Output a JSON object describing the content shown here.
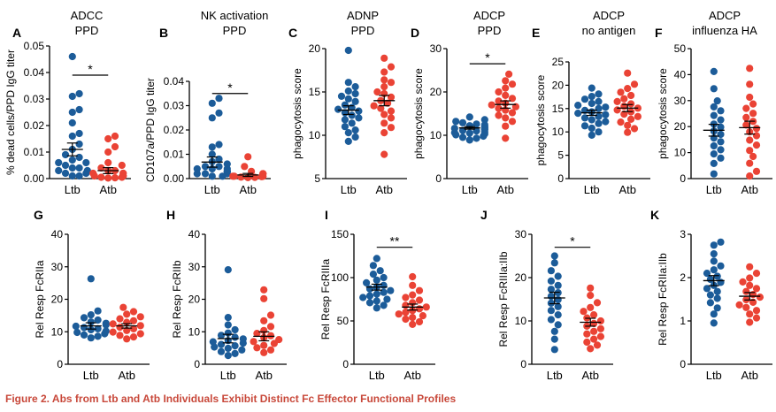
{
  "figure": {
    "caption": "Figure 2.  Abs from Ltb and Atb Individuals Exhibit Distinct Fc Effector Functional Profiles"
  },
  "colors": {
    "ltb": "#1c5c99",
    "atb": "#ea4335",
    "axis": "#000000",
    "caption": "#c8483a"
  },
  "chart_data": [
    {
      "panel": "A",
      "type": "scatter",
      "title": [
        "ADCC",
        "PPD"
      ],
      "ylabel": "% dead cells/PPD IgG titer",
      "ylim": [
        0,
        0.05
      ],
      "yticks": [
        0,
        0.01,
        0.02,
        0.03,
        0.04,
        0.05
      ],
      "ytick_labels": [
        "0.00",
        "0.01",
        "0.02",
        "0.03",
        "0.04",
        "0.05"
      ],
      "categories": [
        "Ltb",
        "Atb"
      ],
      "significance": "*",
      "series": [
        {
          "name": "Ltb",
          "mean": 0.011,
          "values": [
            0.046,
            0.031,
            0.032,
            0.026,
            0.025,
            0.021,
            0.017,
            0.016,
            0.013,
            0.011,
            0.009,
            0.008,
            0.007,
            0.006,
            0.006,
            0.005,
            0.004,
            0.004,
            0.003,
            0.003,
            0.002,
            0.002,
            0.001,
            0.001
          ]
        },
        {
          "name": "Atb",
          "mean": 0.003,
          "values": [
            0.016,
            0.015,
            0.012,
            0.01,
            0.006,
            0.005,
            0.004,
            0.003,
            0.003,
            0.002,
            0.002,
            0.002,
            0.001,
            0.001,
            0.001,
            0.001,
            0.0005,
            0.0005,
            0.0003,
            0.0002
          ]
        }
      ]
    },
    {
      "panel": "B",
      "type": "scatter",
      "title": [
        "NK activation",
        "PPD"
      ],
      "ylabel": "CD107a/PPD IgG titer",
      "ylim": [
        0,
        0.04
      ],
      "yticks": [
        0,
        0.01,
        0.02,
        0.03,
        0.04
      ],
      "ytick_labels": [
        "0.00",
        "0.01",
        "0.02",
        "0.03",
        "0.04"
      ],
      "categories": [
        "Ltb",
        "Atb"
      ],
      "significance": "*",
      "series": [
        {
          "name": "Ltb",
          "mean": 0.0068,
          "values": [
            0.033,
            0.031,
            0.027,
            0.025,
            0.014,
            0.013,
            0.01,
            0.008,
            0.007,
            0.006,
            0.005,
            0.005,
            0.004,
            0.004,
            0.004,
            0.003,
            0.003,
            0.003,
            0.002,
            0.002,
            0.002,
            0.001,
            0.001
          ]
        },
        {
          "name": "Atb",
          "mean": 0.0015,
          "values": [
            0.009,
            0.005,
            0.003,
            0.002,
            0.002,
            0.002,
            0.001,
            0.001,
            0.001,
            0.001,
            0.0008,
            0.0006,
            0.0005,
            0.0004
          ]
        }
      ]
    },
    {
      "panel": "C",
      "type": "scatter",
      "title": [
        "ADNP",
        "PPD"
      ],
      "ylabel": "phagocytosis score",
      "ylim": [
        5,
        20
      ],
      "yticks": [
        5,
        10,
        15,
        20
      ],
      "ytick_labels": [
        "5",
        "10",
        "15",
        "20"
      ],
      "categories": [
        "Ltb",
        "Atb"
      ],
      "significance": "",
      "series": [
        {
          "name": "Ltb",
          "mean": 12.9,
          "values": [
            19.8,
            16.1,
            15.6,
            15.1,
            14.8,
            14.5,
            14.2,
            13.9,
            13.5,
            13.2,
            13.0,
            12.8,
            12.6,
            12.3,
            12.0,
            11.8,
            11.4,
            11.0,
            10.6,
            10.3,
            9.8,
            9.3
          ]
        },
        {
          "name": "Atb",
          "mean": 14.0,
          "values": [
            18.9,
            17.9,
            17.3,
            16.4,
            16.1,
            15.6,
            15.0,
            14.8,
            14.4,
            14.0,
            13.7,
            13.4,
            13.1,
            12.8,
            12.4,
            12.0,
            11.4,
            10.9,
            10.3,
            7.8
          ]
        }
      ]
    },
    {
      "panel": "D",
      "type": "scatter",
      "title": [
        "ADCP",
        "PPD"
      ],
      "ylabel": "phagocytosis score",
      "ylim": [
        0,
        30
      ],
      "yticks": [
        0,
        10,
        20,
        30
      ],
      "ytick_labels": [
        "0",
        "10",
        "20",
        "30"
      ],
      "categories": [
        "Ltb",
        "Atb"
      ],
      "significance": "*",
      "series": [
        {
          "name": "Ltb",
          "mean": 11.7,
          "values": [
            14.2,
            13.6,
            13.2,
            12.9,
            12.6,
            12.4,
            12.2,
            12.0,
            11.8,
            11.6,
            11.5,
            11.3,
            11.1,
            11.0,
            10.8,
            10.6,
            10.5,
            10.3,
            10.1,
            9.8,
            9.5,
            9.3,
            8.9
          ]
        },
        {
          "name": "Atb",
          "mean": 17.1,
          "values": [
            24.1,
            22.6,
            21.8,
            20.9,
            20.0,
            19.2,
            18.5,
            17.9,
            17.4,
            17.0,
            16.6,
            16.2,
            15.8,
            15.2,
            14.6,
            14.0,
            13.2,
            12.1,
            9.3
          ]
        }
      ]
    },
    {
      "panel": "E",
      "type": "scatter",
      "title": [
        "ADCP",
        "no antigen"
      ],
      "ylabel": "phagocytosis score",
      "ylim": [
        0,
        25
      ],
      "yticks": [
        0,
        5,
        10,
        15,
        20,
        25
      ],
      "ytick_labels": [
        "0",
        "5",
        "10",
        "15",
        "20",
        "25"
      ],
      "categories": [
        "Ltb",
        "Atb"
      ],
      "significance": "",
      "series": [
        {
          "name": "Ltb",
          "mean": 14.1,
          "values": [
            19.4,
            18.1,
            17.6,
            17.0,
            16.5,
            16.1,
            15.7,
            15.3,
            15.0,
            14.6,
            14.3,
            14.0,
            13.7,
            13.3,
            13.0,
            12.6,
            12.2,
            11.8,
            11.3,
            10.8,
            10.0,
            9.3
          ]
        },
        {
          "name": "Atb",
          "mean": 15.1,
          "values": [
            22.6,
            20.2,
            19.3,
            18.5,
            17.8,
            17.1,
            16.5,
            16.0,
            15.5,
            15.1,
            14.7,
            14.3,
            13.8,
            13.3,
            12.7,
            12.1,
            11.4,
            10.7,
            9.9
          ]
        }
      ]
    },
    {
      "panel": "F",
      "type": "scatter",
      "title": [
        "ADCP",
        "influenza HA"
      ],
      "ylabel": "phagocytosis score",
      "ylim": [
        0,
        50
      ],
      "yticks": [
        0,
        10,
        20,
        30,
        40,
        50
      ],
      "ytick_labels": [
        "0",
        "10",
        "20",
        "30",
        "40",
        "50"
      ],
      "categories": [
        "Ltb",
        "Atb"
      ],
      "significance": "",
      "series": [
        {
          "name": "Ltb",
          "mean": 18.6,
          "values": [
            41.2,
            34.6,
            29.9,
            27.6,
            26.1,
            24.3,
            22.6,
            21.0,
            19.8,
            18.3,
            17.0,
            15.6,
            14.2,
            12.6,
            11.1,
            9.5,
            7.9,
            5.8,
            1.8
          ]
        },
        {
          "name": "Atb",
          "mean": 19.6,
          "values": [
            42.4,
            36.3,
            31.3,
            28.7,
            27.0,
            25.1,
            23.5,
            22.0,
            20.6,
            19.3,
            18.0,
            16.5,
            14.8,
            12.9,
            10.8,
            8.5,
            5.9,
            2.8,
            1.0
          ]
        }
      ]
    },
    {
      "panel": "G",
      "type": "scatter",
      "title": [],
      "ylabel": "Rel Resp FcRIIa",
      "ylim": [
        0,
        40
      ],
      "yticks": [
        0,
        10,
        20,
        30,
        40
      ],
      "ytick_labels": [
        "0",
        "10",
        "20",
        "30",
        "40"
      ],
      "categories": [
        "Ltb",
        "Atb"
      ],
      "significance": "",
      "series": [
        {
          "name": "Ltb",
          "mean": 11.8,
          "values": [
            26.3,
            16.4,
            15.2,
            14.3,
            13.6,
            13.0,
            12.6,
            12.1,
            11.7,
            11.3,
            10.9,
            10.6,
            10.2,
            9.8,
            9.4,
            9.0,
            8.6,
            8.1
          ]
        },
        {
          "name": "Atb",
          "mean": 11.8,
          "values": [
            17.5,
            16.2,
            15.4,
            14.6,
            14.0,
            13.4,
            12.9,
            12.4,
            11.9,
            11.4,
            10.9,
            10.4,
            9.9,
            9.4,
            8.9,
            8.4,
            7.8
          ]
        }
      ]
    },
    {
      "panel": "H",
      "type": "scatter",
      "title": [],
      "ylabel": "Rel Resp FcRIIb",
      "ylim": [
        0,
        40
      ],
      "yticks": [
        0,
        10,
        20,
        30,
        40
      ],
      "ytick_labels": [
        "0",
        "10",
        "20",
        "30",
        "40"
      ],
      "categories": [
        "Ltb",
        "Atb"
      ],
      "significance": "",
      "series": [
        {
          "name": "Ltb",
          "mean": 7.9,
          "values": [
            29.1,
            14.4,
            12.1,
            10.6,
            9.6,
            8.9,
            8.3,
            7.8,
            7.3,
            6.9,
            6.5,
            6.1,
            5.7,
            5.3,
            4.9,
            4.4,
            3.9,
            3.3,
            2.7
          ]
        },
        {
          "name": "Atb",
          "mean": 8.6,
          "values": [
            22.9,
            20.2,
            15.1,
            13.4,
            11.6,
            10.4,
            9.5,
            8.8,
            8.2,
            7.6,
            7.0,
            6.4,
            5.8,
            5.1,
            4.4,
            3.6
          ]
        }
      ]
    },
    {
      "panel": "I",
      "type": "scatter",
      "title": [],
      "ylabel": "Rel Resp FcRIIIa",
      "ylim": [
        0,
        150
      ],
      "yticks": [
        0,
        50,
        100,
        150
      ],
      "ytick_labels": [
        "0",
        "50",
        "100",
        "150"
      ],
      "categories": [
        "Ltb",
        "Atb"
      ],
      "significance": "**",
      "series": [
        {
          "name": "Ltb",
          "mean": 89,
          "values": [
            122,
            114,
            108,
            104,
            100,
            97,
            94,
            91,
            89,
            87,
            85,
            83,
            81,
            79,
            77,
            75,
            73,
            71,
            68,
            65
          ]
        },
        {
          "name": "Atb",
          "mean": 66,
          "values": [
            101,
            91,
            85,
            80,
            77,
            74,
            71,
            68,
            66,
            64,
            62,
            60,
            58,
            56,
            54,
            52,
            49,
            46
          ]
        }
      ]
    },
    {
      "panel": "J",
      "type": "scatter",
      "title": [],
      "ylabel": "Rel Resp FcRIIIa:IIb",
      "ylim": [
        0,
        30
      ],
      "yticks": [
        0,
        10,
        20,
        30
      ],
      "ytick_labels": [
        "0",
        "10",
        "20",
        "30"
      ],
      "categories": [
        "Ltb",
        "Atb"
      ],
      "significance": "*",
      "series": [
        {
          "name": "Ltb",
          "mean": 15.3,
          "values": [
            25.0,
            23.4,
            21.6,
            20.3,
            19.2,
            18.2,
            17.3,
            16.5,
            15.7,
            14.9,
            14.1,
            13.3,
            12.4,
            11.4,
            10.3,
            9.1,
            7.6,
            5.8,
            3.4
          ]
        },
        {
          "name": "Atb",
          "mean": 9.7,
          "values": [
            17.6,
            15.9,
            14.2,
            13.1,
            12.2,
            11.4,
            10.7,
            10.0,
            9.4,
            8.8,
            8.2,
            7.6,
            7.0,
            6.4,
            5.8,
            5.1,
            4.4,
            3.6
          ]
        }
      ]
    },
    {
      "panel": "K",
      "type": "scatter",
      "title": [],
      "ylabel": "Rel Resp FcRIIa:IIb",
      "ylim": [
        0,
        3
      ],
      "yticks": [
        0,
        1,
        2,
        3
      ],
      "ytick_labels": [
        "0",
        "1",
        "2",
        "3"
      ],
      "categories": [
        "Ltb",
        "Atb"
      ],
      "significance": "",
      "series": [
        {
          "name": "Ltb",
          "mean": 1.93,
          "values": [
            2.82,
            2.75,
            2.55,
            2.38,
            2.27,
            2.18,
            2.1,
            2.03,
            1.96,
            1.89,
            1.82,
            1.75,
            1.68,
            1.6,
            1.52,
            1.42,
            1.3,
            1.16,
            0.95
          ]
        },
        {
          "name": "Atb",
          "mean": 1.57,
          "values": [
            2.25,
            2.1,
            1.99,
            1.9,
            1.82,
            1.75,
            1.68,
            1.61,
            1.55,
            1.49,
            1.43,
            1.37,
            1.31,
            1.24,
            1.16,
            1.07,
            0.97
          ]
        }
      ]
    }
  ]
}
